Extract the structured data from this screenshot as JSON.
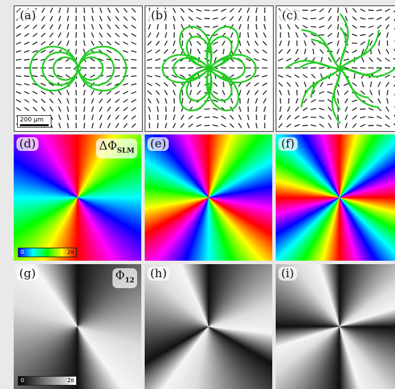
{
  "panels": [
    {
      "label": "(a)",
      "scale_bar": "200 μm"
    },
    {
      "label": "(b)"
    },
    {
      "label": "(c)"
    },
    {
      "label": "(d)",
      "symbol": "ΔΦ",
      "symbol_sub": "SLM"
    },
    {
      "label": "(e)"
    },
    {
      "label": "(f)"
    },
    {
      "label": "(g)",
      "symbol": "Φ",
      "symbol_sub": "12"
    },
    {
      "label": "(h)"
    },
    {
      "label": "(i)"
    }
  ],
  "colorbar_slm": {
    "min": "0",
    "max": "2π"
  },
  "colorbar_phi12": {
    "min": "0",
    "max": "2π"
  },
  "colors": {
    "streamline": "#22cc22",
    "rod": "#111111"
  }
}
